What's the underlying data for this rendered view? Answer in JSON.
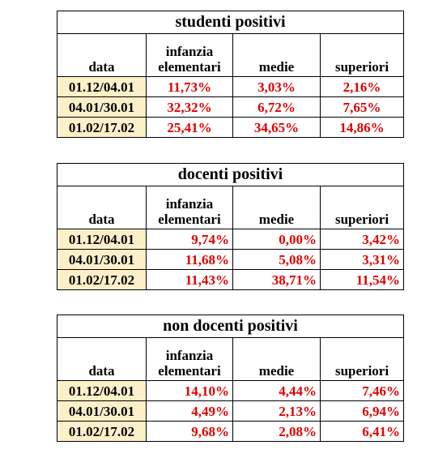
{
  "tables": [
    {
      "title": "studenti positivi",
      "header": [
        "data",
        "infanzia elementari",
        "medie",
        "superiori"
      ],
      "rows": [
        [
          "01.12/04.01",
          "11,73%",
          "3,03%",
          "2,16%"
        ],
        [
          "04.01/30.01",
          "32,32%",
          "6,72%",
          "7,65%"
        ],
        [
          "01.02/17.02",
          "25,41%",
          "34,65%",
          "14,86%"
        ]
      ]
    },
    {
      "title": "docenti positivi",
      "header": [
        "data",
        "infanzia elementari",
        "medie",
        "superiori"
      ],
      "rows": [
        [
          "01.12/04.01",
          "9,74%",
          "0,00%",
          "3,42%"
        ],
        [
          "04.01/30.01",
          "11,68%",
          "5,08%",
          "3,31%"
        ],
        [
          "01.02/17.02",
          "11,43%",
          "38,71%",
          "11,54%"
        ]
      ]
    },
    {
      "title": "non docenti positivi",
      "header": [
        "data",
        "infanzia elementari",
        "medie",
        "superiori"
      ],
      "rows": [
        [
          "01.12/04.01",
          "14,10%",
          "4,44%",
          "7,46%"
        ],
        [
          "04.01/30.01",
          "4,49%",
          "2,13%",
          "6,94%"
        ],
        [
          "01.02/17.02",
          "9,68%",
          "2,08%",
          "6,41%"
        ]
      ]
    }
  ]
}
